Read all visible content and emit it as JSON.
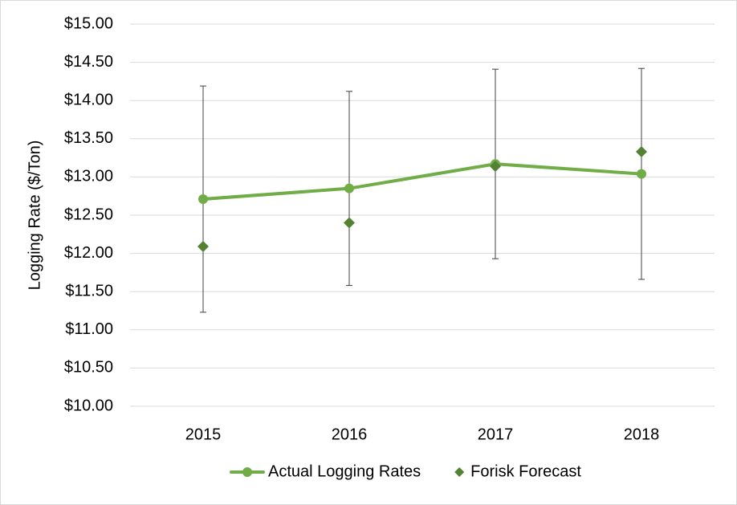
{
  "chart_data": {
    "type": "line",
    "y_label": "Logging Rate ($/Ton)",
    "categories": [
      "2015",
      "2016",
      "2017",
      "2018"
    ],
    "series": [
      {
        "name": "Actual Logging Rates",
        "color": "#70ad47",
        "marker": "circle",
        "values": [
          12.71,
          12.85,
          13.17,
          13.04
        ],
        "errors": [
          1.48,
          1.27,
          1.24,
          1.38
        ]
      },
      {
        "name": "Forisk Forecast",
        "color": "#548235",
        "marker": "diamond",
        "line": false,
        "values": [
          12.09,
          12.4,
          13.14,
          13.33
        ]
      }
    ],
    "ylim": [
      10,
      15
    ],
    "yticks": [
      {
        "value": 10,
        "label": "$10.00"
      },
      {
        "value": 10.5,
        "label": "$10.50"
      },
      {
        "value": 11,
        "label": "$11.00"
      },
      {
        "value": 11.5,
        "label": "$11.50"
      },
      {
        "value": 12,
        "label": "$12.00"
      },
      {
        "value": 12.5,
        "label": "$12.50"
      },
      {
        "value": 13,
        "label": "$13.00"
      },
      {
        "value": 13.5,
        "label": "$13.50"
      },
      {
        "value": 14,
        "label": "$14.00"
      },
      {
        "value": 14.5,
        "label": "$14.50"
      },
      {
        "value": 15,
        "label": "$15.00"
      }
    ],
    "grid": true,
    "legend": "bottom"
  }
}
